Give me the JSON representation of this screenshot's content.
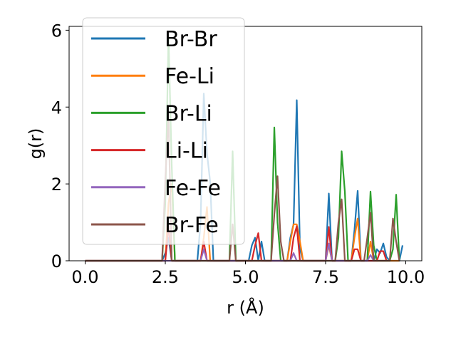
{
  "chart_data": {
    "type": "line",
    "xlabel": "r (Å)",
    "ylabel": "g(r)",
    "xlim": [
      -0.5,
      10.5
    ],
    "ylim": [
      0,
      6.1
    ],
    "xticks": [
      "0.0",
      "2.5",
      "5.0",
      "7.5",
      "10.0"
    ],
    "xtick_values": [
      0,
      2.5,
      5,
      7.5,
      10
    ],
    "yticks": [
      "0",
      "2",
      "4",
      "6"
    ],
    "ytick_values": [
      0,
      2,
      4,
      6
    ],
    "grid": false,
    "legend_position": "top-left",
    "series": [
      {
        "name": "Br-Br",
        "color": "#1f77b4",
        "x": [
          0,
          2.4,
          2.5,
          2.6,
          2.7,
          3.5,
          3.6,
          3.7,
          3.8,
          3.9,
          4.0,
          5.1,
          5.2,
          5.3,
          5.4,
          5.5,
          5.6,
          6.3,
          6.4,
          6.5,
          6.6,
          6.7,
          6.8,
          7.5,
          7.6,
          7.7,
          8.3,
          8.4,
          8.5,
          8.6,
          9.0,
          9.1,
          9.2,
          9.3,
          9.4,
          9.5,
          9.7,
          9.8,
          9.9
        ],
        "y": [
          0,
          0,
          0.2,
          0.6,
          0,
          0,
          1.0,
          4.35,
          2.8,
          2.05,
          0,
          0,
          0.4,
          0.6,
          0,
          0.5,
          0,
          0,
          0.6,
          0.95,
          4.18,
          0.3,
          0,
          0,
          1.75,
          0,
          0,
          0.8,
          1.82,
          0,
          0,
          0.3,
          0.2,
          0.45,
          0.1,
          0,
          0,
          0,
          0.4
        ]
      },
      {
        "name": "Fe-Li",
        "color": "#ff7f0e",
        "x": [
          0,
          2.5,
          2.6,
          2.7,
          2.8,
          3.6,
          3.7,
          3.8,
          3.9,
          6.3,
          6.4,
          6.5,
          6.6,
          6.7,
          6.8,
          7.5,
          7.6,
          7.7,
          8.3,
          8.4,
          8.5,
          8.6,
          8.8,
          8.9,
          9.0,
          9.8
        ],
        "y": [
          0,
          0,
          1.5,
          2.0,
          0,
          0,
          0.6,
          1.4,
          0,
          0,
          0.5,
          0.95,
          0.95,
          0.5,
          0,
          0,
          0.4,
          0,
          0,
          0.6,
          1.1,
          0,
          0,
          0.5,
          0,
          0
        ]
      },
      {
        "name": "Br-Li",
        "color": "#2ca02c",
        "x": [
          0,
          2.4,
          2.5,
          2.6,
          2.7,
          2.8,
          4.5,
          4.6,
          4.7,
          5.8,
          5.9,
          6.0,
          6.1,
          7.8,
          7.9,
          8.0,
          8.1,
          8.2,
          8.8,
          8.9,
          9.0,
          9.1,
          9.5,
          9.6,
          9.7,
          9.8
        ],
        "y": [
          0,
          0,
          1.5,
          5.85,
          2.5,
          0,
          0,
          2.85,
          0,
          0,
          3.47,
          1.0,
          0,
          0,
          0.6,
          2.85,
          1.8,
          0,
          0,
          1.8,
          0.4,
          0,
          0,
          0.3,
          1.72,
          0
        ]
      },
      {
        "name": "Li-Li",
        "color": "#d62728",
        "x": [
          0,
          2.5,
          2.6,
          2.7,
          3.6,
          3.7,
          3.8,
          5.2,
          5.3,
          5.4,
          5.5,
          6.4,
          6.5,
          6.6,
          6.7,
          7.5,
          7.6,
          7.7,
          8.3,
          8.4,
          8.5,
          8.6,
          9.1,
          9.2,
          9.3,
          9.4
        ],
        "y": [
          0,
          0,
          0.9,
          0,
          0,
          0.5,
          0,
          0,
          0.4,
          0.72,
          0,
          0,
          0.6,
          0.9,
          0,
          0,
          0.88,
          0,
          0,
          0.3,
          0.3,
          0,
          0,
          0.25,
          0.25,
          0
        ]
      },
      {
        "name": "Fe-Fe",
        "color": "#9467bd",
        "x": [
          0,
          3.6,
          3.7,
          3.8,
          6.4,
          6.5,
          6.6,
          7.5,
          7.6,
          7.7,
          8.8,
          8.9,
          9.0
        ],
        "y": [
          0,
          0,
          0.3,
          0,
          0,
          0.2,
          0,
          0,
          0.45,
          0,
          0,
          0.15,
          0
        ]
      },
      {
        "name": "Br-Fe",
        "color": "#8c564b",
        "x": [
          0,
          2.4,
          2.5,
          2.6,
          2.7,
          4.5,
          4.6,
          4.7,
          5.8,
          5.9,
          6.0,
          6.1,
          6.2,
          7.8,
          7.9,
          8.0,
          8.1,
          8.7,
          8.8,
          8.9,
          9.0,
          9.5,
          9.6,
          9.7,
          9.8
        ],
        "y": [
          0,
          0,
          2.1,
          3.8,
          0,
          0,
          0.95,
          0,
          0,
          1.2,
          2.2,
          0.5,
          0,
          0,
          1.0,
          1.6,
          0,
          0,
          0.6,
          1.25,
          0,
          0,
          1.1,
          0.5,
          0
        ]
      }
    ]
  }
}
